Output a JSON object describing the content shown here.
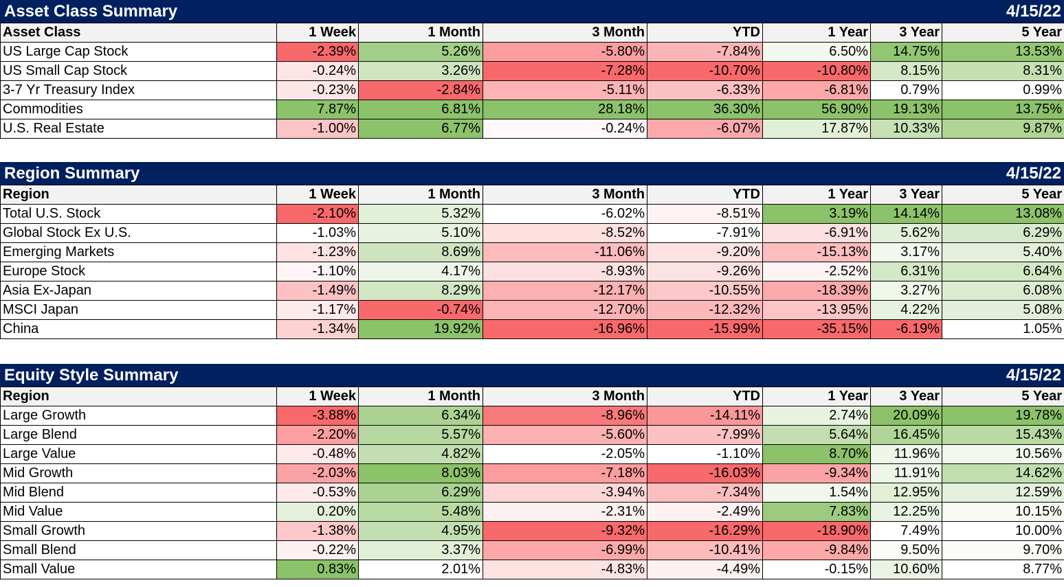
{
  "columns": [
    "1 Week",
    "1 Month",
    "3 Month",
    "YTD",
    "1 Year",
    "3 Year",
    "5 Year"
  ],
  "sections": [
    {
      "title": "Asset Class Summary",
      "date": "4/15/22",
      "first_col": "Asset Class",
      "rows": [
        {
          "label": "US Large Cap Stock",
          "values": [
            "-2.39%",
            "5.26%",
            "-5.80%",
            "-7.84%",
            "6.50%",
            "14.75%",
            "13.53%"
          ],
          "colors": [
            "#f8696b",
            "#a2ce87",
            "#fb9d9f",
            "#fcb5b6",
            "#f3f8ef",
            "#92c672",
            "#92c672"
          ]
        },
        {
          "label": "US Small Cap Stock",
          "values": [
            "-0.24%",
            "3.26%",
            "-7.28%",
            "-10.70%",
            "-10.80%",
            "8.15%",
            "8.31%"
          ],
          "colors": [
            "#fde5e5",
            "#cfe5c1",
            "#f8696b",
            "#f8696b",
            "#f8696b",
            "#d5e8c8",
            "#c5e0b3"
          ]
        },
        {
          "label": "3-7 Yr Treasury Index",
          "values": [
            "-0.23%",
            "-2.84%",
            "-5.11%",
            "-6.33%",
            "-6.81%",
            "0.79%",
            "0.99%"
          ],
          "colors": [
            "#fde6e6",
            "#f8696b",
            "#fcb3b4",
            "#fbc1c2",
            "#fca7a8",
            "#ffffff",
            "#ffffff"
          ]
        },
        {
          "label": "Commodities",
          "values": [
            "7.87%",
            "6.81%",
            "28.18%",
            "36.30%",
            "56.90%",
            "19.13%",
            "13.75%"
          ],
          "colors": [
            "#8cc26a",
            "#8cc26a",
            "#8cc26a",
            "#8cc26a",
            "#8cc26a",
            "#8cc26a",
            "#8cc26a"
          ]
        },
        {
          "label": "U.S. Real Estate",
          "values": [
            "-1.00%",
            "6.77%",
            "-0.24%",
            "-6.07%",
            "17.87%",
            "10.33%",
            "9.87%"
          ],
          "colors": [
            "#fcc4c5",
            "#8dc36b",
            "#fff8f8",
            "#fba9aa",
            "#e1efd7",
            "#c7e1b5",
            "#afd493"
          ]
        }
      ]
    },
    {
      "title": "Region Summary",
      "date": "4/15/22",
      "first_col": "Region",
      "rows": [
        {
          "label": "Total U.S. Stock",
          "values": [
            "-2.10%",
            "5.32%",
            "-6.02%",
            "-8.51%",
            "3.19%",
            "14.14%",
            "13.08%"
          ],
          "colors": [
            "#f8696b",
            "#e2efd9",
            "#ffffff",
            "#fff2f2",
            "#8cc26a",
            "#8cc26a",
            "#8cc26a"
          ]
        },
        {
          "label": "Global Stock Ex U.S.",
          "values": [
            "-1.03%",
            "5.10%",
            "-8.52%",
            "-7.91%",
            "-6.91%",
            "5.62%",
            "6.29%"
          ],
          "colors": [
            "#ffffff",
            "#e8f2e1",
            "#fde0e0",
            "#ffffff",
            "#fde0e1",
            "#e2efd9",
            "#d6e9ca"
          ]
        },
        {
          "label": "Emerging Markets",
          "values": [
            "-1.23%",
            "8.69%",
            "-11.06%",
            "-9.20%",
            "-15.13%",
            "3.17%",
            "5.40%"
          ],
          "colors": [
            "#fde2e2",
            "#cde4bf",
            "#fcbcbd",
            "#fde2e2",
            "#fcbdbe",
            "#f3f8ef",
            "#e4f0dc"
          ]
        },
        {
          "label": "Europe Stock",
          "values": [
            "-1.10%",
            "4.17%",
            "-8.93%",
            "-9.26%",
            "-2.52%",
            "6.31%",
            "6.64%"
          ],
          "colors": [
            "#fff5f5",
            "#edf5e8",
            "#fde1e1",
            "#fde2e2",
            "#fff4f4",
            "#d3e8c5",
            "#d3e8c5"
          ]
        },
        {
          "label": "Asia Ex-Japan",
          "values": [
            "-1.49%",
            "8.29%",
            "-12.17%",
            "-10.55%",
            "-18.39%",
            "3.27%",
            "6.08%"
          ],
          "colors": [
            "#fcc1c2",
            "#d2e7c4",
            "#fbb0b1",
            "#fcc7c8",
            "#fbaaab",
            "#f0f7eb",
            "#dcecd1"
          ]
        },
        {
          "label": "MSCI Japan",
          "values": [
            "-1.17%",
            "-0.74%",
            "-12.70%",
            "-12.32%",
            "-13.95%",
            "4.22%",
            "5.08%"
          ],
          "colors": [
            "#fdeaea",
            "#f8696b",
            "#fcb3b4",
            "#fcb8b9",
            "#fcc4c5",
            "#e7f2e0",
            "#e3efda"
          ]
        },
        {
          "label": "China",
          "values": [
            "-1.34%",
            "19.92%",
            "-16.96%",
            "-15.99%",
            "-35.15%",
            "-6.19%",
            "1.05%"
          ],
          "colors": [
            "#fcd2d3",
            "#8cc26a",
            "#f8696b",
            "#f8696b",
            "#f8696b",
            "#f8696b",
            "#ffffff"
          ]
        }
      ]
    },
    {
      "title": "Equity Style Summary",
      "date": "4/15/22",
      "first_col": "Region",
      "rows": [
        {
          "label": "Large Growth",
          "values": [
            "-3.88%",
            "6.34%",
            "-8.96%",
            "-14.11%",
            "2.74%",
            "20.09%",
            "19.78%"
          ],
          "colors": [
            "#f8696b",
            "#abd293",
            "#f8797b",
            "#fa9799",
            "#e8f2e1",
            "#8cc26a",
            "#8cc26a"
          ]
        },
        {
          "label": "Large Blend",
          "values": [
            "-2.20%",
            "5.57%",
            "-5.60%",
            "-7.99%",
            "5.64%",
            "16.45%",
            "15.43%"
          ],
          "colors": [
            "#fb9fa0",
            "#b6d79f",
            "#fbb0b1",
            "#fcc2c3",
            "#c3dfb1",
            "#b1d598",
            "#b8daa2"
          ]
        },
        {
          "label": "Large Value",
          "values": [
            "-0.48%",
            "4.82%",
            "-2.05%",
            "-1.10%",
            "8.70%",
            "11.96%",
            "10.56%"
          ],
          "colors": [
            "#fde9e9",
            "#c3dfb1",
            "#ffffff",
            "#ffffff",
            "#8cc26a",
            "#eef6e9",
            "#f3f8ef"
          ]
        },
        {
          "label": "Mid Growth",
          "values": [
            "-2.03%",
            "8.03%",
            "-7.18%",
            "-16.03%",
            "-9.34%",
            "11.91%",
            "14.62%"
          ],
          "colors": [
            "#fba3a4",
            "#8cc26a",
            "#fb9d9e",
            "#f8696b",
            "#fba3a4",
            "#eef6e9",
            "#c1deaf"
          ]
        },
        {
          "label": "Mid Blend",
          "values": [
            "-0.53%",
            "6.29%",
            "-3.94%",
            "-7.34%",
            "1.54%",
            "12.95%",
            "12.59%"
          ],
          "colors": [
            "#fde9e9",
            "#abd293",
            "#fdd7d8",
            "#fcbdbe",
            "#f0f7eb",
            "#e1efd7",
            "#e4f0dc"
          ]
        },
        {
          "label": "Mid Value",
          "values": [
            "0.20%",
            "5.48%",
            "-2.31%",
            "-2.49%",
            "7.83%",
            "12.25%",
            "10.15%"
          ],
          "colors": [
            "#e4f0dc",
            "#b8daa2",
            "#fdf0f0",
            "#fef1f1",
            "#9ccb7f",
            "#e9f3e3",
            "#f6faf3"
          ]
        },
        {
          "label": "Small Growth",
          "values": [
            "-1.38%",
            "4.95%",
            "-9.32%",
            "-16.29%",
            "-18.90%",
            "7.49%",
            "10.00%"
          ],
          "colors": [
            "#fcc8c9",
            "#c3dfb1",
            "#f8696b",
            "#f8696b",
            "#f8696b",
            "#ffffff",
            "#ffffff"
          ]
        },
        {
          "label": "Small Blend",
          "values": [
            "-0.22%",
            "3.37%",
            "-6.99%",
            "-10.41%",
            "-9.84%",
            "9.50%",
            "9.70%"
          ],
          "colors": [
            "#fdf0f0",
            "#e1efd7",
            "#fca7a8",
            "#fcbabb",
            "#fca8a9",
            "#fafcf8",
            "#fafcf8"
          ]
        },
        {
          "label": "Small Value",
          "values": [
            "0.83%",
            "2.01%",
            "-4.83%",
            "-4.49%",
            "-0.15%",
            "10.60%",
            "8.77%"
          ],
          "colors": [
            "#8cc26a",
            "#ffffff",
            "#fde2e2",
            "#fdf0f0",
            "#ffffff",
            "#eaf3e4",
            "#ffffff"
          ]
        }
      ]
    }
  ]
}
